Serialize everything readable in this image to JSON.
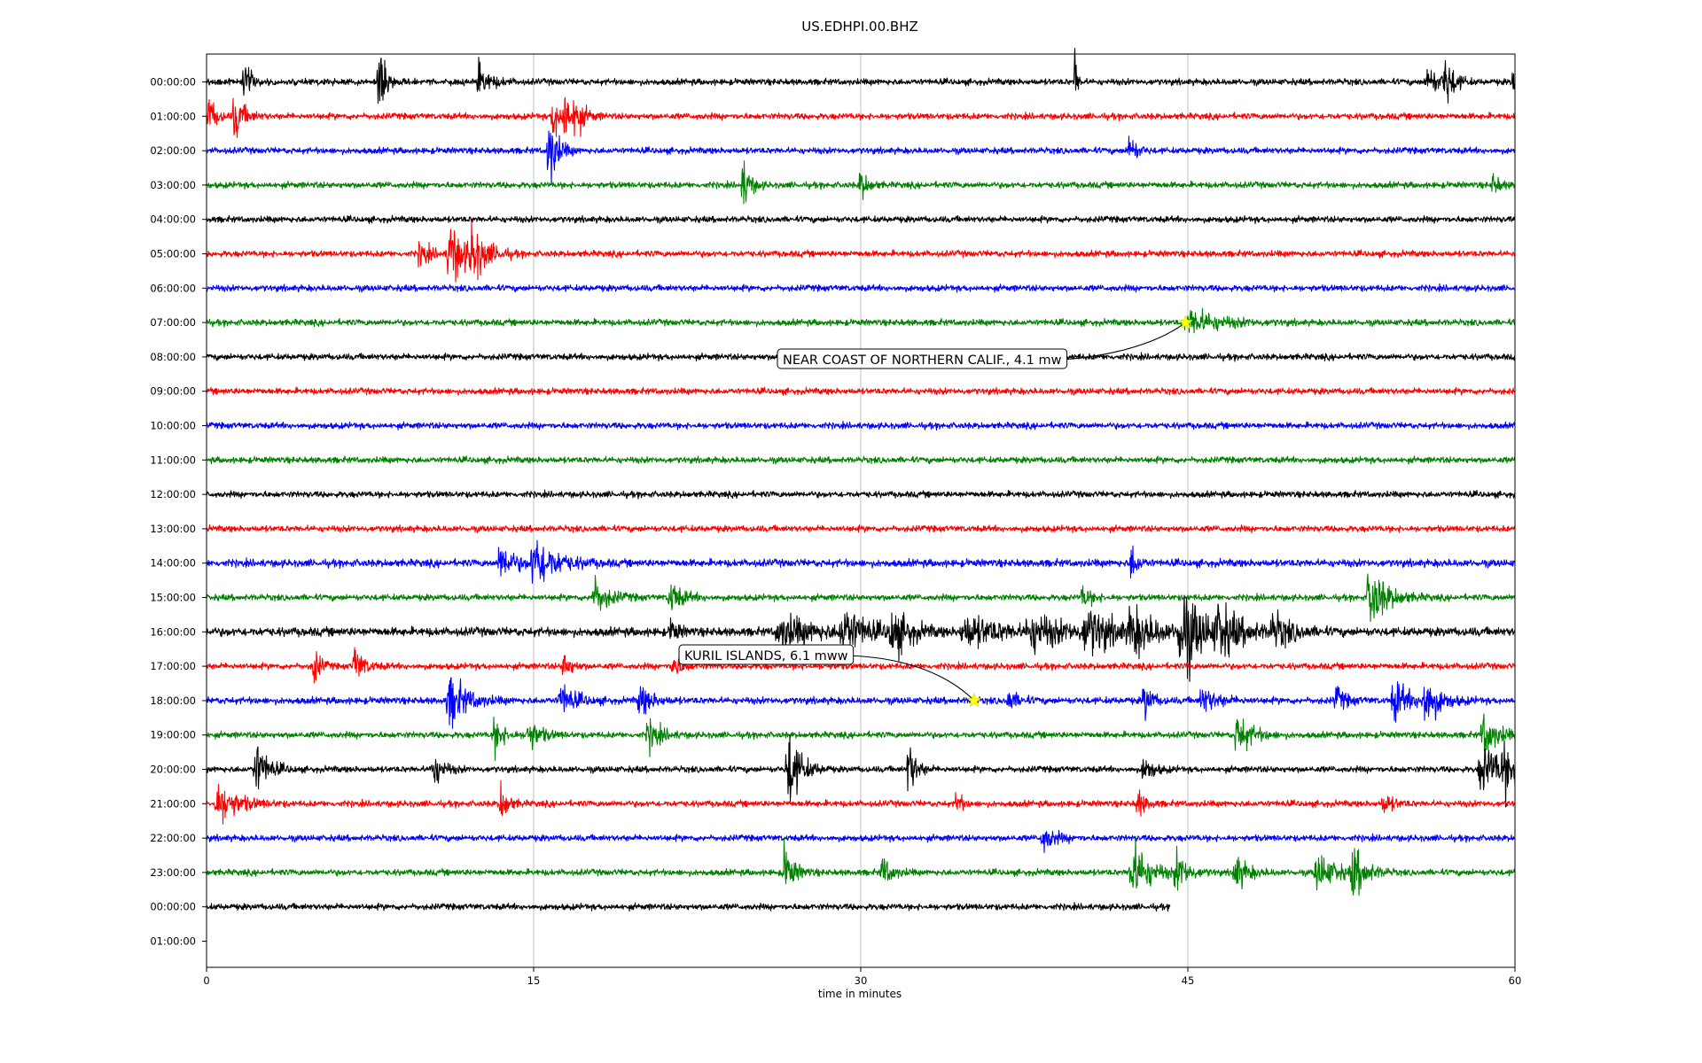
{
  "chart_data": {
    "type": "line",
    "title": "US.EDHPI.00.BHZ",
    "xlabel": "time in minutes",
    "ylabel": "",
    "xlim": [
      0,
      60
    ],
    "x_ticks": [
      0,
      15,
      30,
      45,
      60
    ],
    "x_tick_labels": [
      "0",
      "15",
      "30",
      "45",
      "60"
    ],
    "grid": "vertical lines at x ticks",
    "color_cycle": [
      "#000000",
      "#ff0000",
      "#0000ff",
      "#008000"
    ],
    "highlight_color": "#ffff00",
    "y_tick_labels": [
      "00:00:00",
      "01:00:00",
      "02:00:00",
      "03:00:00",
      "04:00:00",
      "05:00:00",
      "06:00:00",
      "07:00:00",
      "08:00:00",
      "09:00:00",
      "10:00:00",
      "11:00:00",
      "12:00:00",
      "13:00:00",
      "14:00:00",
      "15:00:00",
      "16:00:00",
      "17:00:00",
      "18:00:00",
      "19:00:00",
      "20:00:00",
      "21:00:00",
      "22:00:00",
      "23:00:00",
      "00:00:00",
      "01:00:00"
    ],
    "traces": [
      {
        "label": "00:00:00",
        "end_minute": 60,
        "noise": 1.0,
        "events": [
          [
            1.7,
            3.5,
            0.3
          ],
          [
            7.9,
            8,
            0.25
          ],
          [
            12.5,
            3,
            0.5
          ],
          [
            39.8,
            9,
            0.1
          ],
          [
            56,
            3,
            0.5
          ],
          [
            56.8,
            5,
            0.35
          ],
          [
            59.9,
            5,
            0.1
          ]
        ]
      },
      {
        "label": "01:00:00",
        "end_minute": 60,
        "noise": 1.0,
        "events": [
          [
            0.1,
            4,
            0.3
          ],
          [
            1.3,
            4.5,
            0.4
          ],
          [
            15.9,
            4.5,
            0.35
          ],
          [
            16.4,
            9,
            0.15
          ],
          [
            16.9,
            4,
            0.4
          ]
        ]
      },
      {
        "label": "02:00:00",
        "end_minute": 60,
        "noise": 1.0,
        "events": [
          [
            15.7,
            8,
            0.35
          ],
          [
            42.3,
            3.5,
            0.3
          ]
        ]
      },
      {
        "label": "03:00:00",
        "end_minute": 60,
        "noise": 1.0,
        "events": [
          [
            24.6,
            5,
            0.3
          ],
          [
            30,
            3,
            0.3
          ],
          [
            59,
            2,
            0.3
          ]
        ]
      },
      {
        "label": "04:00:00",
        "end_minute": 60,
        "noise": 1.0,
        "events": []
      },
      {
        "label": "05:00:00",
        "end_minute": 60,
        "noise": 1.0,
        "events": [
          [
            9.8,
            2.5,
            0.4
          ],
          [
            11.2,
            6,
            0.7
          ],
          [
            12.2,
            4.5,
            0.6
          ]
        ]
      },
      {
        "label": "06:00:00",
        "end_minute": 60,
        "noise": 1.0,
        "events": []
      },
      {
        "label": "07:00:00",
        "end_minute": 60,
        "noise": 1.0,
        "events": [
          [
            45.2,
            2.5,
            1.2
          ]
        ]
      },
      {
        "label": "08:00:00",
        "end_minute": 60,
        "noise": 1.0,
        "events": []
      },
      {
        "label": "09:00:00",
        "end_minute": 60,
        "noise": 1.0,
        "events": []
      },
      {
        "label": "10:00:00",
        "end_minute": 60,
        "noise": 1.0,
        "events": []
      },
      {
        "label": "11:00:00",
        "end_minute": 60,
        "noise": 1.0,
        "events": []
      },
      {
        "label": "12:00:00",
        "end_minute": 60,
        "noise": 1.0,
        "events": []
      },
      {
        "label": "13:00:00",
        "end_minute": 60,
        "noise": 1.0,
        "events": []
      },
      {
        "label": "14:00:00",
        "end_minute": 60,
        "noise": 1.2,
        "events": [
          [
            13.5,
            3.5,
            0.6
          ],
          [
            15.1,
            5,
            0.9
          ],
          [
            42.4,
            4,
            0.25
          ]
        ]
      },
      {
        "label": "15:00:00",
        "end_minute": 60,
        "noise": 1.0,
        "events": [
          [
            17.8,
            3.5,
            0.6
          ],
          [
            21.3,
            3,
            0.5
          ],
          [
            40.2,
            2,
            0.4
          ],
          [
            53.4,
            6,
            0.7
          ]
        ]
      },
      {
        "label": "16:00:00",
        "end_minute": 60,
        "noise": 1.4,
        "events": [
          [
            21.3,
            2.5,
            0.3
          ],
          [
            26.5,
            3,
            1.5
          ],
          [
            29.3,
            4,
            1.0
          ],
          [
            31.5,
            4,
            0.8
          ],
          [
            35,
            3,
            1.5
          ],
          [
            38,
            3,
            1.5
          ],
          [
            40.5,
            4,
            1.2
          ],
          [
            42.5,
            4,
            1
          ],
          [
            44.8,
            8,
            1.0
          ],
          [
            46.5,
            4,
            1
          ],
          [
            49,
            3,
            0.8
          ]
        ]
      },
      {
        "label": "17:00:00",
        "end_minute": 60,
        "noise": 1.0,
        "events": [
          [
            4.9,
            4.5,
            0.25
          ],
          [
            6.8,
            3.5,
            0.4
          ],
          [
            16.4,
            3,
            0.3
          ],
          [
            21.4,
            3,
            0.3
          ]
        ]
      },
      {
        "label": "18:00:00",
        "end_minute": 60,
        "noise": 1.1,
        "events": [
          [
            11.2,
            5,
            0.7
          ],
          [
            16.3,
            3,
            0.6
          ],
          [
            19.9,
            3,
            0.5
          ],
          [
            36.8,
            2,
            0.4
          ],
          [
            43,
            4,
            0.3
          ],
          [
            45.7,
            2.5,
            0.6
          ],
          [
            51.8,
            2.5,
            0.4
          ],
          [
            54.5,
            4,
            0.6
          ],
          [
            55.9,
            5,
            0.6
          ]
        ]
      },
      {
        "label": "19:00:00",
        "end_minute": 60,
        "noise": 1.0,
        "events": [
          [
            13.2,
            3.5,
            0.4
          ],
          [
            14.8,
            3,
            0.5
          ],
          [
            20.3,
            3,
            0.5
          ],
          [
            47.3,
            4,
            0.6
          ],
          [
            58.6,
            4,
            0.6
          ]
        ]
      },
      {
        "label": "20:00:00",
        "end_minute": 60,
        "noise": 1.0,
        "events": [
          [
            2.3,
            5,
            0.5
          ],
          [
            10.4,
            3.5,
            0.4
          ],
          [
            26.7,
            8,
            0.5
          ],
          [
            32.2,
            6,
            0.3
          ],
          [
            43,
            2.5,
            0.4
          ],
          [
            58.6,
            4.5,
            1.0
          ],
          [
            59.5,
            4,
            0.4
          ]
        ]
      },
      {
        "label": "21:00:00",
        "end_minute": 60,
        "noise": 1.0,
        "events": [
          [
            0.6,
            4,
            0.8
          ],
          [
            13.5,
            4,
            0.3
          ],
          [
            34.4,
            3,
            0.2
          ],
          [
            42.7,
            3,
            0.3
          ],
          [
            54,
            2,
            0.4
          ]
        ]
      },
      {
        "label": "22:00:00",
        "end_minute": 60,
        "noise": 1.0,
        "events": [
          [
            38.4,
            2.5,
            0.5
          ]
        ]
      },
      {
        "label": "23:00:00",
        "end_minute": 60,
        "noise": 1.0,
        "events": [
          [
            26.5,
            5,
            0.4
          ],
          [
            31,
            3,
            0.4
          ],
          [
            42.5,
            6,
            0.7
          ],
          [
            44.5,
            3.5,
            0.5
          ],
          [
            47.2,
            3.5,
            0.5
          ],
          [
            51,
            3.5,
            0.8
          ],
          [
            52.6,
            5,
            0.5
          ]
        ]
      },
      {
        "label": "00:00:00",
        "end_minute": 44.2,
        "noise": 1.0,
        "events": []
      }
    ],
    "annotations": [
      {
        "text": "NEAR COAST OF NORTHERN CALIF., 4.1 mw",
        "trace_index": 7,
        "minute": 44.9
      },
      {
        "text": "KURIL ISLANDS, 6.1 mww",
        "trace_index": 18,
        "minute": 35.2
      }
    ]
  }
}
